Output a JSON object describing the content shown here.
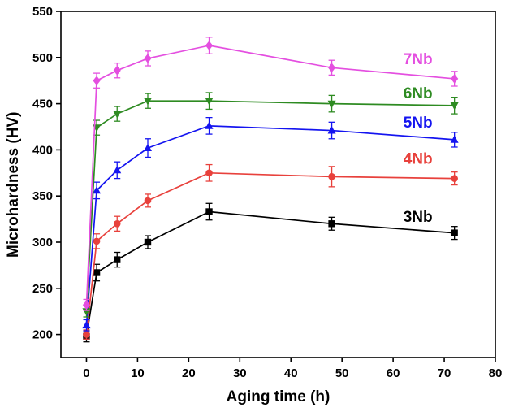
{
  "chart_data": {
    "type": "line",
    "title": "",
    "xlabel": "Aging time (h)",
    "ylabel": "Microhardness (HV)",
    "xlim": [
      -5,
      80
    ],
    "ylim": [
      175,
      550
    ],
    "xticks": [
      0,
      10,
      20,
      30,
      40,
      50,
      60,
      70,
      80
    ],
    "yticks": [
      200,
      250,
      300,
      350,
      400,
      450,
      500,
      550
    ],
    "grid": false,
    "legend_position": "inline-labels",
    "x": [
      0,
      2,
      6,
      12,
      24,
      48,
      72
    ],
    "series": [
      {
        "name": "3Nb",
        "color": "#000000",
        "marker": "square",
        "values": [
          198,
          267,
          281,
          300,
          333,
          320,
          310
        ],
        "errors": [
          6,
          9,
          8,
          7,
          9,
          7,
          7
        ],
        "label": {
          "x": 62,
          "y": 322
        }
      },
      {
        "name": "4Nb",
        "color": "#e8413c",
        "marker": "circle",
        "values": [
          200,
          301,
          320,
          345,
          375,
          371,
          369
        ],
        "errors": [
          5,
          8,
          8,
          7,
          9,
          11,
          7
        ],
        "label": {
          "x": 62,
          "y": 385
        }
      },
      {
        "name": "5Nb",
        "color": "#1414f0",
        "marker": "triangle-up",
        "values": [
          210,
          356,
          378,
          402,
          426,
          421,
          411
        ],
        "errors": [
          6,
          9,
          9,
          10,
          9,
          9,
          8
        ],
        "label": {
          "x": 62,
          "y": 424
        }
      },
      {
        "name": "6Nb",
        "color": "#2e8b22",
        "marker": "triangle-down",
        "values": [
          225,
          424,
          439,
          453,
          453,
          450,
          448
        ],
        "errors": [
          6,
          8,
          8,
          8,
          9,
          9,
          9
        ],
        "label": {
          "x": 62,
          "y": 456
        }
      },
      {
        "name": "7Nb",
        "color": "#e44fe0",
        "marker": "diamond",
        "values": [
          232,
          475,
          486,
          499,
          513,
          489,
          477
        ],
        "errors": [
          6,
          8,
          8,
          8,
          9,
          8,
          8
        ],
        "label": {
          "x": 62,
          "y": 493
        }
      }
    ]
  }
}
